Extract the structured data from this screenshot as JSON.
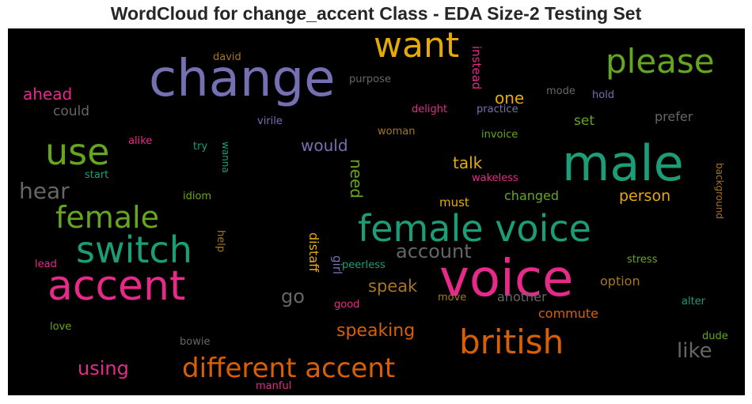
{
  "title": "WordCloud for change_accent Class - EDA Size-2 Testing Set",
  "chart_data": {
    "type": "wordcloud",
    "title": "WordCloud for change_accent Class - EDA Size-2 Testing Set",
    "background": "#000000",
    "colormap": "Dark2",
    "words": [
      {
        "text": "voice",
        "size": 64,
        "color": "#e7298a",
        "vertical": false
      },
      {
        "text": "change",
        "size": 64,
        "color": "#7570b3",
        "vertical": false
      },
      {
        "text": "male",
        "size": 62,
        "color": "#1b9e77",
        "vertical": false
      },
      {
        "text": "accent",
        "size": 52,
        "color": "#e7298a",
        "vertical": false
      },
      {
        "text": "female voice",
        "size": 46,
        "color": "#1b9e77",
        "vertical": false
      },
      {
        "text": "switch",
        "size": 46,
        "color": "#1b9e77",
        "vertical": false
      },
      {
        "text": "use",
        "size": 46,
        "color": "#66a61e",
        "vertical": false
      },
      {
        "text": "british",
        "size": 42,
        "color": "#d95f02",
        "vertical": false
      },
      {
        "text": "want",
        "size": 44,
        "color": "#e6ab02",
        "vertical": false
      },
      {
        "text": "please",
        "size": 42,
        "color": "#66a61e",
        "vertical": false
      },
      {
        "text": "female",
        "size": 38,
        "color": "#66a61e",
        "vertical": false
      },
      {
        "text": "different accent",
        "size": 34,
        "color": "#d95f02",
        "vertical": false
      },
      {
        "text": "hear",
        "size": 28,
        "color": "#666666",
        "vertical": false
      },
      {
        "text": "account",
        "size": 24,
        "color": "#666666",
        "vertical": false
      },
      {
        "text": "like",
        "size": 26,
        "color": "#666666",
        "vertical": false
      },
      {
        "text": "using",
        "size": 24,
        "color": "#e7298a",
        "vertical": false
      },
      {
        "text": "go",
        "size": 24,
        "color": "#666666",
        "vertical": false
      },
      {
        "text": "speaking",
        "size": 22,
        "color": "#d95f02",
        "vertical": false
      },
      {
        "text": "speak",
        "size": 21,
        "color": "#a6761d",
        "vertical": false
      },
      {
        "text": "would",
        "size": 20,
        "color": "#7570b3",
        "vertical": false
      },
      {
        "text": "ahead",
        "size": 20,
        "color": "#e7298a",
        "vertical": false
      },
      {
        "text": "one",
        "size": 20,
        "color": "#e6ab02",
        "vertical": false
      },
      {
        "text": "talk",
        "size": 20,
        "color": "#e6ab02",
        "vertical": false
      },
      {
        "text": "person",
        "size": 19,
        "color": "#e6ab02",
        "vertical": false
      },
      {
        "text": "need",
        "size": 20,
        "color": "#66a61e",
        "vertical": true
      },
      {
        "text": "could",
        "size": 17,
        "color": "#666666",
        "vertical": false
      },
      {
        "text": "set",
        "size": 17,
        "color": "#66a61e",
        "vertical": false
      },
      {
        "text": "prefer",
        "size": 16,
        "color": "#666666",
        "vertical": false
      },
      {
        "text": "changed",
        "size": 16,
        "color": "#66a61e",
        "vertical": false
      },
      {
        "text": "option",
        "size": 16,
        "color": "#a6761d",
        "vertical": false
      },
      {
        "text": "another",
        "size": 16,
        "color": "#666666",
        "vertical": false
      },
      {
        "text": "commute",
        "size": 16,
        "color": "#d95f02",
        "vertical": false
      },
      {
        "text": "must",
        "size": 15,
        "color": "#e6ab02",
        "vertical": false
      },
      {
        "text": "instead",
        "size": 15,
        "color": "#e7298a",
        "vertical": true
      },
      {
        "text": "distaff",
        "size": 16,
        "color": "#e6ab02",
        "vertical": true
      },
      {
        "text": "girl",
        "size": 15,
        "color": "#7570b3",
        "vertical": true
      },
      {
        "text": "help",
        "size": 13,
        "color": "#a6761d",
        "vertical": true
      },
      {
        "text": "background",
        "size": 12,
        "color": "#a6761d",
        "vertical": true
      },
      {
        "text": "wanna",
        "size": 12,
        "color": "#1b9e77",
        "vertical": true
      },
      {
        "text": "practice",
        "size": 13,
        "color": "#7570b3",
        "vertical": false
      },
      {
        "text": "invoice",
        "size": 13,
        "color": "#66a61e",
        "vertical": false
      },
      {
        "text": "purpose",
        "size": 13,
        "color": "#666666",
        "vertical": false
      },
      {
        "text": "delight",
        "size": 13,
        "color": "#e7298a",
        "vertical": false
      },
      {
        "text": "mode",
        "size": 13,
        "color": "#666666",
        "vertical": false
      },
      {
        "text": "hold",
        "size": 13,
        "color": "#7570b3",
        "vertical": false
      },
      {
        "text": "david",
        "size": 13,
        "color": "#a6761d",
        "vertical": false
      },
      {
        "text": "virile",
        "size": 13,
        "color": "#7570b3",
        "vertical": false
      },
      {
        "text": "woman",
        "size": 13,
        "color": "#a6761d",
        "vertical": false
      },
      {
        "text": "alike",
        "size": 13,
        "color": "#e7298a",
        "vertical": false
      },
      {
        "text": "try",
        "size": 13,
        "color": "#1b9e77",
        "vertical": false
      },
      {
        "text": "start",
        "size": 13,
        "color": "#1b9e77",
        "vertical": false
      },
      {
        "text": "idiom",
        "size": 13,
        "color": "#66a61e",
        "vertical": false
      },
      {
        "text": "wakeless",
        "size": 13,
        "color": "#e7298a",
        "vertical": false
      },
      {
        "text": "peerless",
        "size": 13,
        "color": "#1b9e77",
        "vertical": false
      },
      {
        "text": "lead",
        "size": 13,
        "color": "#e7298a",
        "vertical": false
      },
      {
        "text": "good",
        "size": 13,
        "color": "#e7298a",
        "vertical": false
      },
      {
        "text": "move",
        "size": 13,
        "color": "#a6761d",
        "vertical": false
      },
      {
        "text": "stress",
        "size": 13,
        "color": "#66a61e",
        "vertical": false
      },
      {
        "text": "alter",
        "size": 13,
        "color": "#1b9e77",
        "vertical": false
      },
      {
        "text": "love",
        "size": 13,
        "color": "#66a61e",
        "vertical": false
      },
      {
        "text": "bowie",
        "size": 13,
        "color": "#666666",
        "vertical": false
      },
      {
        "text": "dude",
        "size": 13,
        "color": "#66a61e",
        "vertical": false
      },
      {
        "text": "manful",
        "size": 13,
        "color": "#e7298a",
        "vertical": false
      }
    ]
  }
}
